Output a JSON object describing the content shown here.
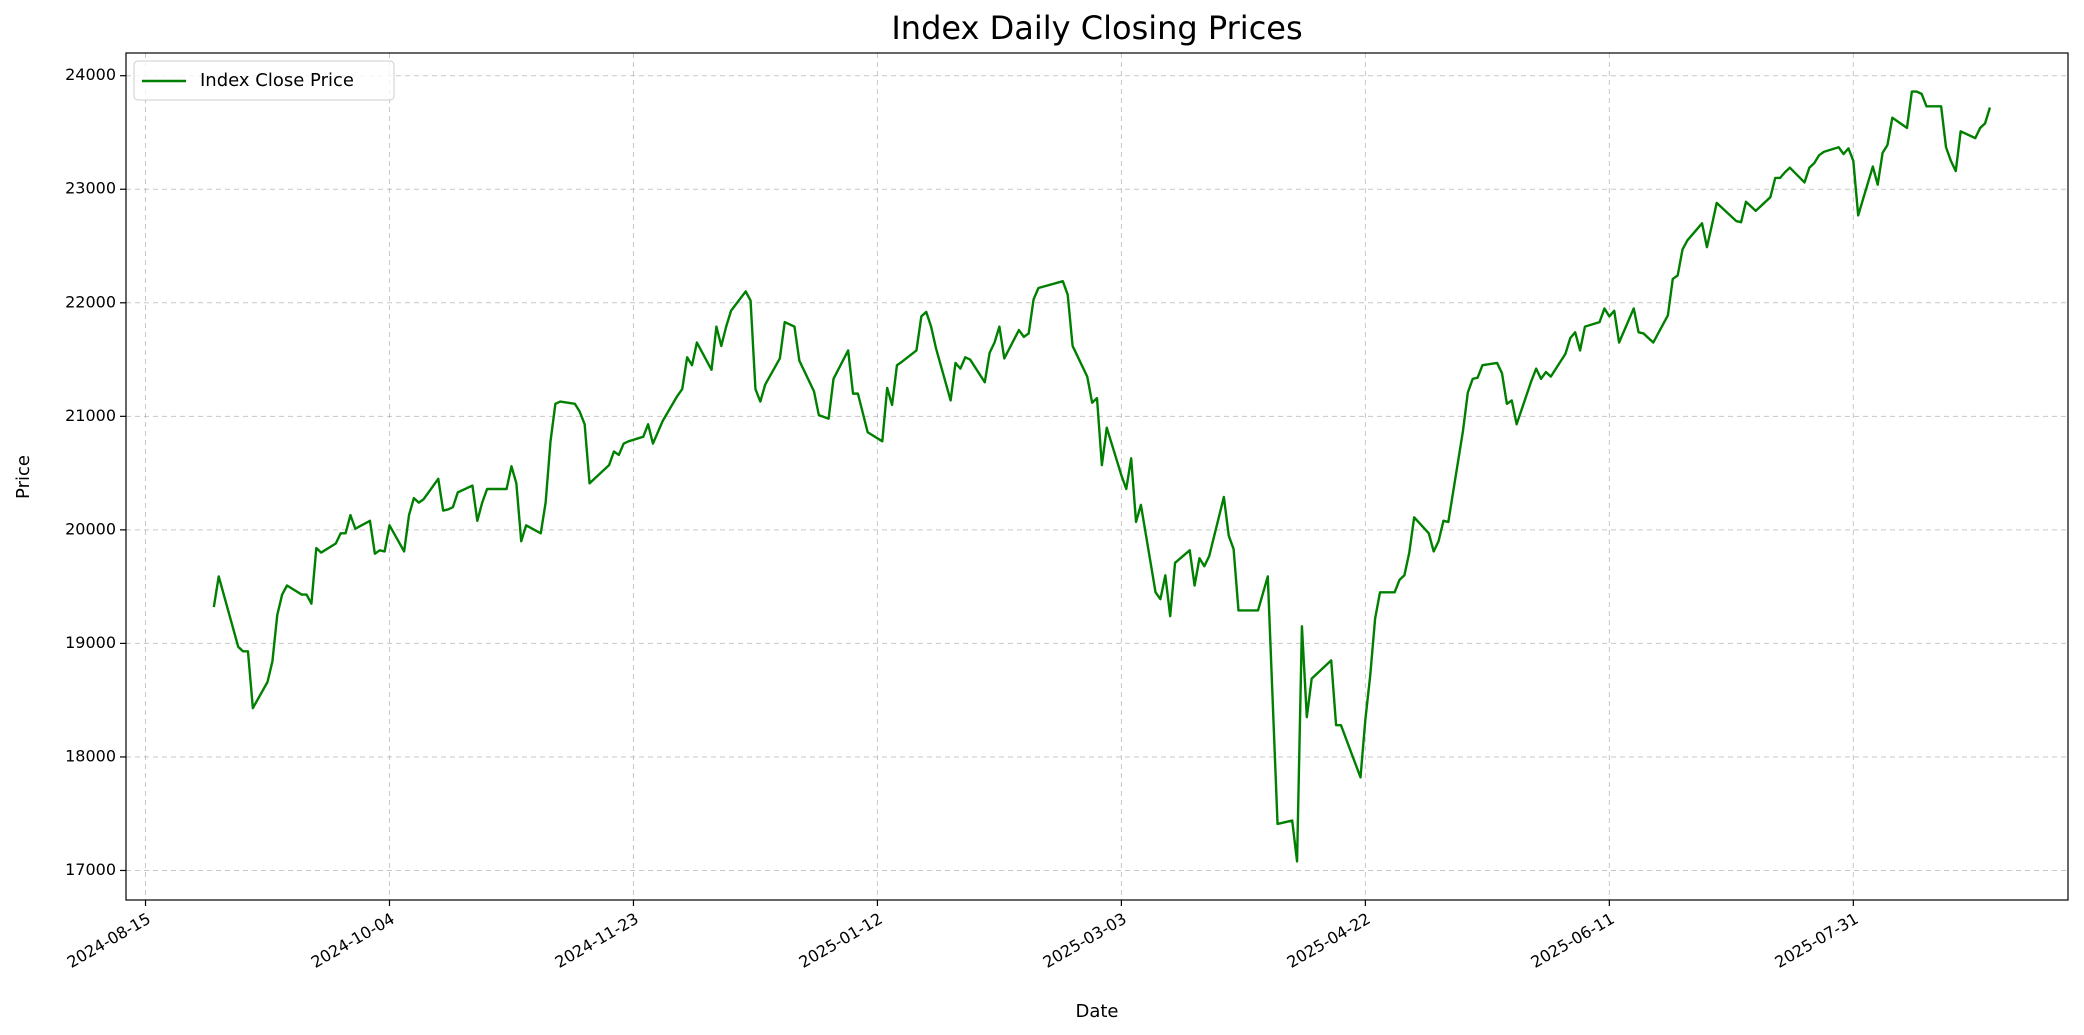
{
  "chart_data": {
    "type": "line",
    "title": "Index Daily Closing Prices",
    "x_label": "Date",
    "y_label": "Price",
    "x": [
      "2024-08-29",
      "2024-08-30",
      "2024-09-03",
      "2024-09-04",
      "2024-09-05",
      "2024-09-06",
      "2024-09-09",
      "2024-09-10",
      "2024-09-11",
      "2024-09-12",
      "2024-09-13",
      "2024-09-16",
      "2024-09-17",
      "2024-09-18",
      "2024-09-19",
      "2024-09-20",
      "2024-09-23",
      "2024-09-24",
      "2024-09-25",
      "2024-09-26",
      "2024-09-27",
      "2024-09-30",
      "2024-10-01",
      "2024-10-02",
      "2024-10-03",
      "2024-10-04",
      "2024-10-07",
      "2024-10-08",
      "2024-10-09",
      "2024-10-10",
      "2024-10-11",
      "2024-10-14",
      "2024-10-15",
      "2024-10-16",
      "2024-10-17",
      "2024-10-18",
      "2024-10-21",
      "2024-10-22",
      "2024-10-23",
      "2024-10-24",
      "2024-10-25",
      "2024-10-28",
      "2024-10-29",
      "2024-10-30",
      "2024-10-31",
      "2024-11-01",
      "2024-11-04",
      "2024-11-05",
      "2024-11-06",
      "2024-11-07",
      "2024-11-08",
      "2024-11-11",
      "2024-11-12",
      "2024-11-13",
      "2024-11-14",
      "2024-11-15",
      "2024-11-18",
      "2024-11-19",
      "2024-11-20",
      "2024-11-21",
      "2024-11-22",
      "2024-11-25",
      "2024-11-26",
      "2024-11-27",
      "2024-11-29",
      "2024-12-02",
      "2024-12-03",
      "2024-12-04",
      "2024-12-05",
      "2024-12-06",
      "2024-12-09",
      "2024-12-10",
      "2024-12-11",
      "2024-12-12",
      "2024-12-13",
      "2024-12-16",
      "2024-12-17",
      "2024-12-18",
      "2024-12-19",
      "2024-12-20",
      "2024-12-23",
      "2024-12-24",
      "2024-12-26",
      "2024-12-27",
      "2024-12-30",
      "2024-12-31",
      "2025-01-02",
      "2025-01-03",
      "2025-01-06",
      "2025-01-07",
      "2025-01-08",
      "2025-01-10",
      "2025-01-13",
      "2025-01-14",
      "2025-01-15",
      "2025-01-16",
      "2025-01-17",
      "2025-01-20",
      "2025-01-21",
      "2025-01-22",
      "2025-01-23",
      "2025-01-24",
      "2025-01-27",
      "2025-01-28",
      "2025-01-29",
      "2025-01-30",
      "2025-01-31",
      "2025-02-03",
      "2025-02-04",
      "2025-02-05",
      "2025-02-06",
      "2025-02-07",
      "2025-02-10",
      "2025-02-11",
      "2025-02-12",
      "2025-02-13",
      "2025-02-14",
      "2025-02-19",
      "2025-02-20",
      "2025-02-21",
      "2025-02-24",
      "2025-02-25",
      "2025-02-26",
      "2025-02-27",
      "2025-02-28",
      "2025-03-03",
      "2025-03-04",
      "2025-03-05",
      "2025-03-06",
      "2025-03-07",
      "2025-03-10",
      "2025-03-11",
      "2025-03-12",
      "2025-03-13",
      "2025-03-14",
      "2025-03-17",
      "2025-03-18",
      "2025-03-19",
      "2025-03-20",
      "2025-03-21",
      "2025-03-24",
      "2025-03-25",
      "2025-03-26",
      "2025-03-27",
      "2025-03-28",
      "2025-03-31",
      "2025-04-02",
      "2025-04-04",
      "2025-04-07",
      "2025-04-08",
      "2025-04-09",
      "2025-04-10",
      "2025-04-11",
      "2025-04-15",
      "2025-04-16",
      "2025-04-17",
      "2025-04-21",
      "2025-04-22",
      "2025-04-23",
      "2025-04-24",
      "2025-04-25",
      "2025-04-28",
      "2025-04-29",
      "2025-04-30",
      "2025-05-01",
      "2025-05-02",
      "2025-05-05",
      "2025-05-06",
      "2025-05-07",
      "2025-05-08",
      "2025-05-09",
      "2025-05-12",
      "2025-05-13",
      "2025-05-14",
      "2025-05-15",
      "2025-05-16",
      "2025-05-19",
      "2025-05-20",
      "2025-05-21",
      "2025-05-22",
      "2025-05-23",
      "2025-05-26",
      "2025-05-27",
      "2025-05-28",
      "2025-05-29",
      "2025-05-30",
      "2025-06-02",
      "2025-06-03",
      "2025-06-04",
      "2025-06-05",
      "2025-06-06",
      "2025-06-09",
      "2025-06-10",
      "2025-06-11",
      "2025-06-12",
      "2025-06-13",
      "2025-06-16",
      "2025-06-17",
      "2025-06-18",
      "2025-06-20",
      "2025-06-23",
      "2025-06-24",
      "2025-06-25",
      "2025-06-26",
      "2025-06-27",
      "2025-06-30",
      "2025-07-01",
      "2025-07-02",
      "2025-07-03",
      "2025-07-07",
      "2025-07-08",
      "2025-07-09",
      "2025-07-10",
      "2025-07-11",
      "2025-07-14",
      "2025-07-15",
      "2025-07-16",
      "2025-07-17",
      "2025-07-18",
      "2025-07-21",
      "2025-07-22",
      "2025-07-23",
      "2025-07-24",
      "2025-07-25",
      "2025-07-28",
      "2025-07-29",
      "2025-07-30",
      "2025-07-31",
      "2025-08-01",
      "2025-08-04",
      "2025-08-05",
      "2025-08-06",
      "2025-08-07",
      "2025-08-08",
      "2025-08-11",
      "2025-08-12",
      "2025-08-13",
      "2025-08-14",
      "2025-08-15",
      "2025-08-18",
      "2025-08-19",
      "2025-08-20",
      "2025-08-21",
      "2025-08-22",
      "2025-08-25",
      "2025-08-26",
      "2025-08-27",
      "2025-08-28"
    ],
    "series": [
      {
        "name": "Index Close Price",
        "color": "#008000",
        "values": [
          19320,
          19590,
          18970,
          18930,
          18930,
          18430,
          18660,
          18840,
          19250,
          19430,
          19510,
          19430,
          19430,
          19350,
          19840,
          19800,
          19880,
          19970,
          19970,
          20130,
          20010,
          20080,
          19790,
          19820,
          19810,
          20040,
          19810,
          20130,
          20280,
          20240,
          20270,
          20450,
          20170,
          20180,
          20200,
          20330,
          20390,
          20080,
          20240,
          20360,
          20360,
          20360,
          20560,
          20410,
          19900,
          20040,
          19970,
          20240,
          20780,
          21110,
          21130,
          21110,
          21040,
          20930,
          20410,
          20450,
          20570,
          20690,
          20660,
          20760,
          20780,
          20820,
          20930,
          20760,
          20960,
          21180,
          21240,
          21520,
          21450,
          21650,
          21410,
          21790,
          21620,
          21790,
          21930,
          22100,
          22020,
          21240,
          21130,
          21280,
          21510,
          21830,
          21790,
          21490,
          21220,
          21010,
          20980,
          21330,
          21580,
          21200,
          21200,
          20860,
          20780,
          21250,
          21100,
          21450,
          21480,
          21580,
          21880,
          21920,
          21790,
          21600,
          21140,
          21470,
          21420,
          21520,
          21500,
          21300,
          21560,
          21650,
          21790,
          21510,
          21760,
          21700,
          21730,
          22030,
          22130,
          22190,
          22070,
          21620,
          21350,
          21120,
          21160,
          20570,
          20900,
          20480,
          20360,
          20630,
          20070,
          20220,
          19450,
          19390,
          19600,
          19240,
          19710,
          19820,
          19510,
          19750,
          19680,
          19770,
          20290,
          19950,
          19830,
          19290,
          19290,
          19290,
          19590,
          17410,
          17440,
          17080,
          19150,
          18350,
          18690,
          18850,
          18280,
          18280,
          17820,
          18330,
          18720,
          19220,
          19450,
          19450,
          19560,
          19600,
          19800,
          20110,
          19970,
          19810,
          19900,
          20080,
          20070,
          20870,
          21210,
          21330,
          21340,
          21450,
          21470,
          21380,
          21110,
          21140,
          20930,
          21310,
          21420,
          21330,
          21390,
          21350,
          21550,
          21690,
          21740,
          21580,
          21790,
          21830,
          21950,
          21880,
          21930,
          21650,
          21950,
          21740,
          21730,
          21650,
          21890,
          22210,
          22240,
          22470,
          22550,
          22700,
          22490,
          22680,
          22880,
          22720,
          22710,
          22890,
          22850,
          22810,
          22930,
          23100,
          23100,
          23150,
          23190,
          23060,
          23190,
          23230,
          23300,
          23330,
          23370,
          23310,
          23360,
          23250,
          22770,
          23200,
          23040,
          23320,
          23390,
          23630,
          23540,
          23860,
          23860,
          23840,
          23730,
          23730,
          23370,
          23250,
          23160,
          23510,
          23450,
          23540,
          23580,
          23720
        ]
      }
    ],
    "xlim": [
      "2024-08-11",
      "2025-09-13"
    ],
    "xticks": [
      "2024-08-15",
      "2024-10-04",
      "2024-11-23",
      "2025-01-12",
      "2025-03-03",
      "2025-04-22",
      "2025-06-11",
      "2025-07-31"
    ],
    "ylim": [
      16740,
      24200
    ],
    "yticks": [
      17000,
      18000,
      19000,
      20000,
      21000,
      22000,
      23000,
      24000
    ],
    "grid": true,
    "legend": "upper left"
  }
}
